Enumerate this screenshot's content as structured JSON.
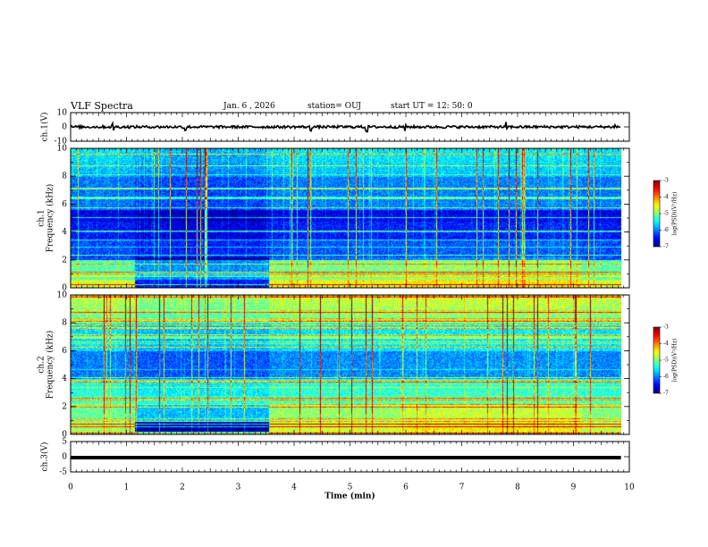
{
  "header": {
    "title": "VLF Spectra",
    "date": "Jan. 6 , 2026",
    "station": "station= OUJ",
    "start": "start UT =   12: 50: 0"
  },
  "chart_data": [
    {
      "type": "line",
      "name": "ch1-waveform",
      "ylabel": "ch.1(V)",
      "ylim": [
        -10,
        10
      ],
      "y_ticks": [
        "10",
        "0",
        "-10"
      ],
      "xlim": [
        0,
        10
      ],
      "trace_level": 0,
      "trace_spikes_min": [
        0.75,
        2.05,
        4.3,
        5.3,
        6.0,
        7.8,
        9.75
      ]
    },
    {
      "type": "heatmap",
      "name": "ch1-spectrogram",
      "ylabel": "ch.1\nFrequency (kHz)",
      "ylim": [
        0,
        10
      ],
      "y_ticks": [
        "10",
        "8",
        "6",
        "4",
        "2",
        "0"
      ],
      "xlim": [
        0,
        10
      ],
      "colorbar": {
        "label": "log(PSD)(V²/Hz)",
        "range": [
          -7,
          -3
        ],
        "ticks": [
          "-3",
          "-4",
          "-5",
          "-6",
          "-7"
        ]
      }
    },
    {
      "type": "heatmap",
      "name": "ch2-spectrogram",
      "ylabel": "ch.2\nFrequency (kHz)",
      "ylim": [
        0,
        10
      ],
      "y_ticks": [
        "10",
        "8",
        "6",
        "4",
        "2",
        "0"
      ],
      "xlim": [
        0,
        10
      ],
      "colorbar": {
        "label": "log(PSD)(V²/Hz)",
        "range": [
          -7,
          -3
        ],
        "ticks": [
          "-3",
          "-4",
          "-5",
          "-6",
          "-7"
        ]
      }
    },
    {
      "type": "line",
      "name": "ch3-waveform",
      "ylabel": "ch.3(V)",
      "ylim": [
        -5,
        5
      ],
      "y_ticks": [
        "5",
        "0",
        "-5"
      ],
      "xlim": [
        0,
        10
      ],
      "trace_level": -0.3
    }
  ],
  "x_axis": {
    "label": "Time (min)",
    "ticks": [
      "0",
      "1",
      "2",
      "3",
      "4",
      "5",
      "6",
      "7",
      "8",
      "9",
      "10"
    ],
    "data_end": 9.85
  },
  "colors": {
    "background": "#ffffff",
    "axis": "#000000"
  }
}
